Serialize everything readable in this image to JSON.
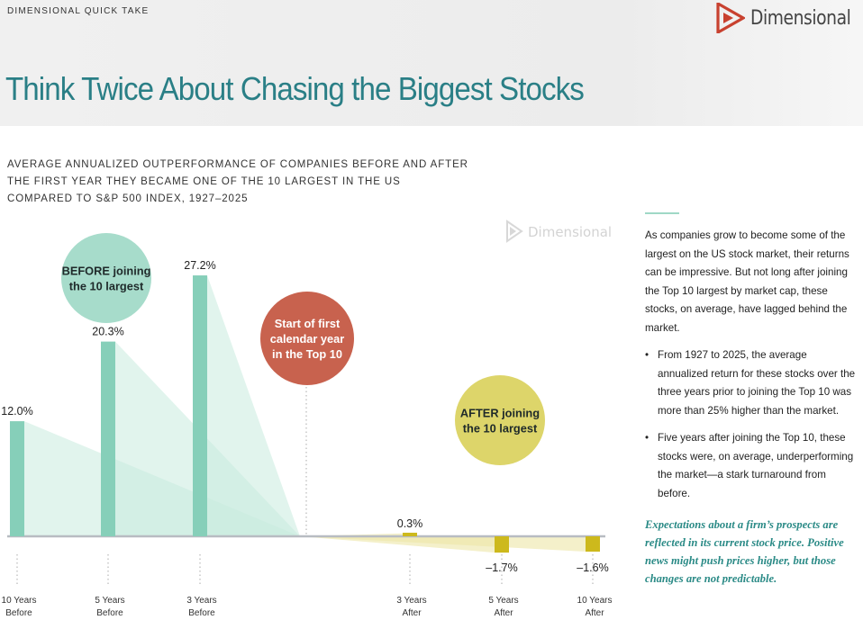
{
  "header": {
    "eyebrow": "DIMENSIONAL QUICK TAKE",
    "logo_text": "Dimensional",
    "title": "Think Twice About Chasing the Biggest Stocks"
  },
  "subtitle_lines": [
    "AVERAGE ANNUALIZED OUTPERFORMANCE OF COMPANIES BEFORE AND AFTER",
    "THE FIRST YEAR THEY BECAME ONE OF THE 10 LARGEST IN THE US",
    "COMPARED TO S&P 500 INDEX, 1927–2025"
  ],
  "watermark": "Dimensional",
  "colors": {
    "before_bar": "#86cfb9",
    "before_fan": "#c9ebdf",
    "after_bar": "#cdb91c",
    "after_fan": "#ece6a6",
    "circle_before": "#a7dccb",
    "circle_start": "#c8624e",
    "circle_after": "#ddd56a",
    "title": "#2a7f86",
    "quote": "#2a8a86",
    "baseline": "#b8bcc2"
  },
  "chart_data": {
    "type": "bar",
    "title": "AVERAGE ANNUALIZED OUTPERFORMANCE OF COMPANIES BEFORE AND AFTER THE FIRST YEAR THEY BECAME ONE OF THE 10 LARGEST IN THE US COMPARED TO S&P 500 INDEX, 1927–2025",
    "xlabel": "",
    "ylabel": "",
    "ylim": [
      -2,
      30
    ],
    "grid": false,
    "categories": [
      "10 Years Before",
      "5 Years Before",
      "3 Years Before",
      "3 Years After",
      "5 Years After",
      "10 Years After"
    ],
    "category_lines": [
      [
        "10 Years",
        "Before"
      ],
      [
        "5 Years",
        "Before"
      ],
      [
        "3 Years",
        "Before"
      ],
      [
        "3 Years",
        "After"
      ],
      [
        "5 Years",
        "After"
      ],
      [
        "10 Years",
        "After"
      ]
    ],
    "values": [
      12.0,
      20.3,
      27.2,
      0.3,
      -1.7,
      -1.6
    ],
    "data_labels": [
      "12.0%",
      "20.3%",
      "27.2%",
      "0.3%",
      "–1.7%",
      "–1.6%"
    ],
    "groups": [
      "before",
      "before",
      "before",
      "after",
      "after",
      "after"
    ],
    "annotations": {
      "before": [
        "BEFORE joining",
        "the 10 largest"
      ],
      "start": [
        "Start of first",
        "calendar year",
        "in the Top 10"
      ],
      "after": [
        "AFTER joining",
        "the 10 largest"
      ]
    }
  },
  "panel": {
    "intro": "As companies grow to become some of the largest on the US stock market, their returns can be impressive. But not long after joining the Top 10 largest by market cap, these stocks, on average, have lagged behind the market.",
    "bullet_glyph": "•",
    "bullets": [
      "From 1927 to 2025, the average annualized return for these stocks over the three years prior to joining the Top 10 was more than 25% higher than the market.",
      "Five years after joining the Top 10, these stocks were, on average, underperforming the market—a stark turnaround from before."
    ],
    "quote": "Expectations about a firm’s prospects are reflected in its current stock price. Positive news might push prices higher, but those changes are not predictable."
  }
}
